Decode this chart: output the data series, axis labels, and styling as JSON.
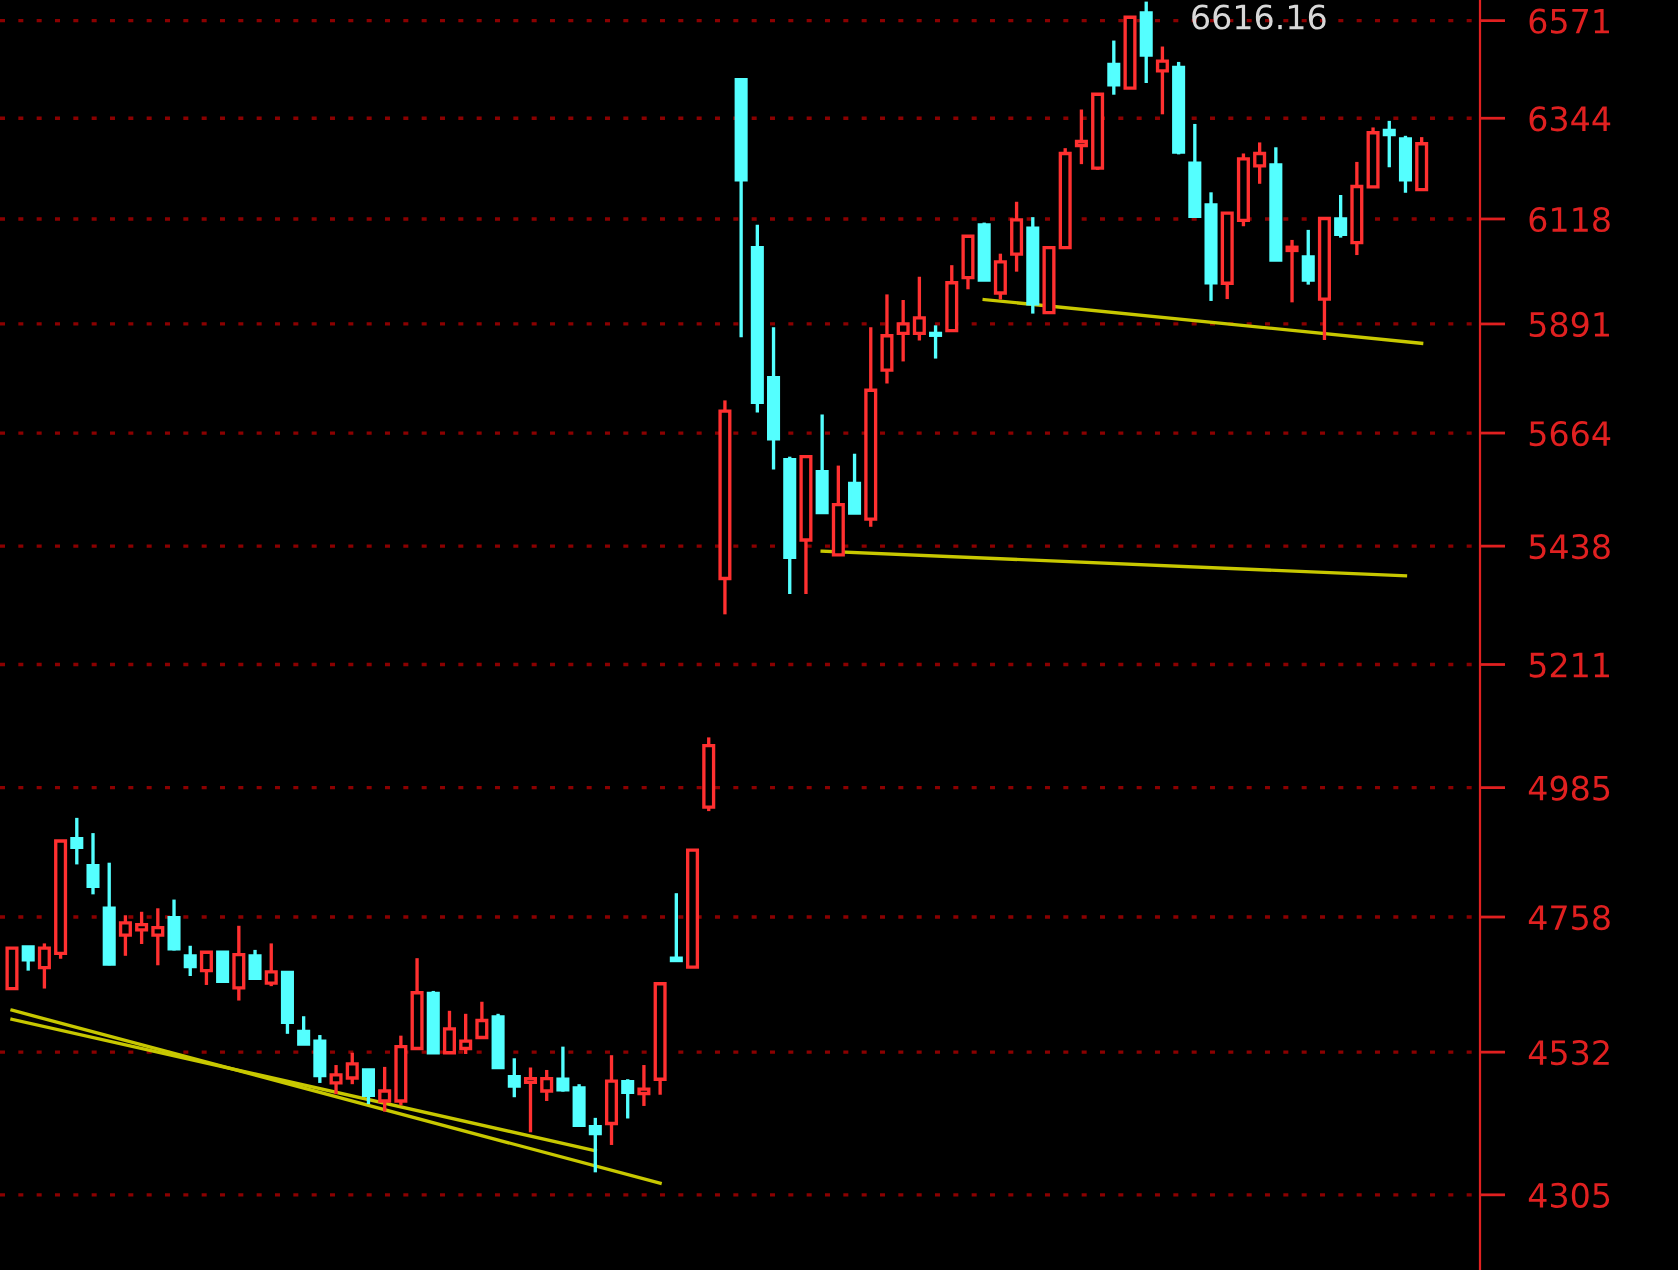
{
  "chart_data": {
    "type": "candlestick",
    "log": "y",
    "grid": "y",
    "tick_labels": "y",
    "categories": [
      null,
      null,
      null,
      null,
      null,
      null,
      null,
      null,
      null,
      null,
      null,
      null,
      null,
      null,
      null,
      null,
      null,
      null,
      null,
      null,
      null,
      null,
      null,
      null,
      null,
      null,
      null,
      null,
      null,
      null,
      null,
      null,
      null,
      null,
      null,
      null,
      null,
      null,
      null,
      null,
      null,
      null,
      null,
      null,
      null,
      null,
      null,
      null,
      null,
      null,
      null,
      null,
      null,
      null,
      null,
      null,
      null,
      null,
      null,
      null,
      null,
      null,
      null,
      null,
      null,
      null,
      null,
      null,
      null,
      null,
      null,
      null,
      null,
      null,
      null,
      null,
      null,
      null,
      null,
      null,
      null,
      null,
      null,
      null,
      null,
      null,
      null,
      null
    ],
    "ohlc": [
      [
        4637,
        4705,
        4637,
        4705
      ],
      [
        4707,
        4707,
        4667,
        4685
      ],
      [
        4672,
        4713,
        4637,
        4705
      ],
      [
        4696,
        4890,
        4687,
        4890
      ],
      [
        4894,
        4931,
        4849,
        4879
      ],
      [
        4847,
        4904,
        4797,
        4811
      ],
      [
        4773,
        4852,
        4676,
        4678
      ],
      [
        4727,
        4761,
        4692,
        4748
      ],
      [
        4736,
        4767,
        4712,
        4745
      ],
      [
        4727,
        4773,
        4676,
        4740
      ],
      [
        4757,
        4788,
        4701,
        4704
      ],
      [
        4692,
        4709,
        4658,
        4674
      ],
      [
        4667,
        4698,
        4643,
        4698
      ],
      [
        4698,
        4698,
        4649,
        4649
      ],
      [
        4638,
        4743,
        4617,
        4694
      ],
      [
        4692,
        4702,
        4654,
        4654
      ],
      [
        4646,
        4713,
        4641,
        4665
      ],
      [
        4664,
        4664,
        4562,
        4581
      ],
      [
        4566,
        4591,
        4545,
        4545
      ],
      [
        4550,
        4560,
        4482,
        4494
      ],
      [
        4482,
        4511,
        4464,
        4495
      ],
      [
        4490,
        4531,
        4480,
        4513
      ],
      [
        4503,
        4503,
        4448,
        4462
      ],
      [
        4453,
        4508,
        4436,
        4469
      ],
      [
        4453,
        4559,
        4446,
        4541
      ],
      [
        4538,
        4688,
        4538,
        4630
      ],
      [
        4629,
        4633,
        4531,
        4531
      ],
      [
        4531,
        4600,
        4531,
        4570
      ],
      [
        4538,
        4595,
        4529,
        4550
      ],
      [
        4556,
        4615,
        4556,
        4584
      ],
      [
        4590,
        4595,
        4507,
        4507
      ],
      [
        4492,
        4522,
        4459,
        4477
      ],
      [
        4483,
        4507,
        4403,
        4489
      ],
      [
        4469,
        4503,
        4453,
        4489
      ],
      [
        4488,
        4541,
        4468,
        4471
      ],
      [
        4474,
        4480,
        4414,
        4414
      ],
      [
        4412,
        4426,
        4340,
        4401
      ],
      [
        4417,
        4527,
        4383,
        4485
      ],
      [
        4484,
        4488,
        4425,
        4467
      ],
      [
        4465,
        4511,
        4445,
        4472
      ],
      [
        4488,
        4645,
        4463,
        4645
      ],
      [
        4688,
        4799,
        4684,
        4684
      ],
      [
        4673,
        4874,
        4673,
        4874
      ],
      [
        4950,
        5076,
        4943,
        5061
      ],
      [
        5375,
        5731,
        5306,
        5709
      ],
      [
        6433,
        6433,
        5863,
        6205
      ],
      [
        6055,
        6105,
        5706,
        5727
      ],
      [
        5778,
        5884,
        5590,
        5652
      ],
      [
        5610,
        5616,
        5345,
        5416
      ],
      [
        5450,
        5616,
        5345,
        5616
      ],
      [
        5586,
        5702,
        5502,
        5504
      ],
      [
        5421,
        5598,
        5421,
        5520
      ],
      [
        5562,
        5622,
        5503,
        5503
      ],
      [
        5491,
        5884,
        5476,
        5752
      ],
      [
        5794,
        5954,
        5766,
        5866
      ],
      [
        5871,
        5942,
        5812,
        5891
      ],
      [
        5871,
        5992,
        5856,
        5904
      ],
      [
        5871,
        5888,
        5818,
        5867
      ],
      [
        5877,
        6017,
        5877,
        5979
      ],
      [
        5990,
        6080,
        5965,
        6080
      ],
      [
        6105,
        6110,
        5985,
        5985
      ],
      [
        5957,
        6042,
        5943,
        6024
      ],
      [
        6041,
        6156,
        6003,
        6116
      ],
      [
        6098,
        6122,
        5913,
        5934
      ],
      [
        5915,
        6055,
        5915,
        6055
      ],
      [
        6055,
        6276,
        6055,
        6264
      ],
      [
        6282,
        6364,
        6240,
        6291
      ],
      [
        6231,
        6399,
        6227,
        6399
      ],
      [
        6468,
        6524,
        6398,
        6421
      ],
      [
        6413,
        6579,
        6413,
        6579
      ],
      [
        6589,
        6616.16,
        6425,
        6490
      ],
      [
        6453,
        6510,
        6353,
        6476
      ],
      [
        6461,
        6474,
        6262,
        6267
      ],
      [
        6242,
        6331,
        6124,
        6124
      ],
      [
        6149,
        6177,
        5940,
        5979
      ],
      [
        5978,
        6131,
        5944,
        6131
      ],
      [
        6115,
        6264,
        6102,
        6252
      ],
      [
        6236,
        6289,
        6196,
        6264
      ],
      [
        6238,
        6278,
        6028,
        6028
      ],
      [
        6049,
        6072,
        5937,
        6056
      ],
      [
        6035,
        6094,
        5975,
        5985
      ],
      [
        5944,
        6119,
        5857,
        6119
      ],
      [
        6118,
        6171,
        6077,
        6084
      ],
      [
        6066,
        6245,
        6039,
        6190
      ],
      [
        6189,
        6323,
        6189,
        6311
      ],
      [
        6316,
        6338,
        6233,
        6307
      ],
      [
        6297,
        6304,
        6176,
        6205
      ],
      [
        6183,
        6301,
        6183,
        6286
      ]
    ],
    "series": [
      {
        "type": "line",
        "color": "#c8c800",
        "values": [
          4601,
          null,
          null,
          null,
          null,
          null,
          null,
          null,
          null,
          null,
          null,
          null,
          null,
          null,
          null,
          null,
          null,
          null,
          null,
          null,
          null,
          null,
          null,
          null,
          null,
          null,
          null,
          null,
          null,
          null,
          null,
          null,
          null,
          null,
          null,
          null,
          null,
          null,
          null,
          null,
          4323,
          null,
          null,
          null,
          null,
          null,
          null,
          null,
          null,
          null,
          null,
          null,
          null,
          null,
          null,
          null,
          null,
          null,
          null,
          null,
          null,
          null,
          null,
          null,
          null,
          null,
          null,
          null,
          null,
          null,
          null,
          null,
          null,
          null,
          null,
          null,
          null,
          null,
          null,
          null,
          null,
          null,
          null,
          null,
          null,
          null,
          null,
          null
        ]
      },
      {
        "type": "line",
        "color": "#c8c800",
        "values": [
          4586,
          null,
          null,
          null,
          null,
          null,
          null,
          null,
          null,
          null,
          null,
          null,
          null,
          null,
          null,
          null,
          null,
          null,
          null,
          null,
          null,
          null,
          null,
          null,
          null,
          null,
          null,
          null,
          null,
          null,
          null,
          null,
          null,
          null,
          null,
          null,
          4374,
          null,
          null,
          null,
          null,
          null,
          null,
          null,
          null,
          null,
          null,
          null,
          null,
          null,
          null,
          null,
          null,
          null,
          null,
          null,
          null,
          null,
          null,
          null,
          null,
          null,
          null,
          null,
          null,
          null,
          null,
          null,
          null,
          null,
          null,
          null,
          null,
          null,
          null,
          null,
          null,
          null,
          null,
          null,
          null,
          null,
          null,
          null,
          null,
          null,
          null,
          null
        ]
      },
      {
        "type": "line",
        "color": "#c8c800",
        "values": [
          null,
          null,
          null,
          null,
          null,
          null,
          null,
          null,
          null,
          null,
          null,
          null,
          null,
          null,
          null,
          null,
          null,
          null,
          null,
          null,
          null,
          null,
          null,
          null,
          null,
          null,
          null,
          null,
          null,
          null,
          null,
          null,
          null,
          null,
          null,
          null,
          null,
          null,
          null,
          null,
          null,
          null,
          null,
          null,
          null,
          null,
          null,
          null,
          null,
          null,
          5428,
          null,
          null,
          null,
          null,
          null,
          null,
          null,
          null,
          null,
          null,
          null,
          null,
          null,
          null,
          null,
          null,
          null,
          null,
          null,
          null,
          null,
          null,
          null,
          null,
          null,
          null,
          null,
          null,
          null,
          null,
          null,
          null,
          null,
          null,
          null,
          5380,
          null
        ]
      },
      {
        "type": "line",
        "color": "#c8c800",
        "values": [
          null,
          null,
          null,
          null,
          null,
          null,
          null,
          null,
          null,
          null,
          null,
          null,
          null,
          null,
          null,
          null,
          null,
          null,
          null,
          null,
          null,
          null,
          null,
          null,
          null,
          null,
          null,
          null,
          null,
          null,
          null,
          null,
          null,
          null,
          null,
          null,
          null,
          null,
          null,
          null,
          null,
          null,
          null,
          null,
          null,
          null,
          null,
          null,
          null,
          null,
          null,
          null,
          null,
          null,
          null,
          null,
          null,
          null,
          null,
          null,
          5943,
          null,
          null,
          null,
          null,
          null,
          null,
          null,
          null,
          null,
          null,
          null,
          null,
          null,
          null,
          null,
          null,
          null,
          null,
          null,
          null,
          null,
          null,
          null,
          null,
          null,
          null,
          5850
        ]
      }
    ],
    "ylim": [
      4190,
      6620
    ],
    "yticks": [
      4305,
      4532,
      4758,
      4985,
      5211,
      5438,
      5664,
      5891,
      6118,
      6344,
      6571
    ],
    "annotations": [
      "6616.16"
    ]
  }
}
